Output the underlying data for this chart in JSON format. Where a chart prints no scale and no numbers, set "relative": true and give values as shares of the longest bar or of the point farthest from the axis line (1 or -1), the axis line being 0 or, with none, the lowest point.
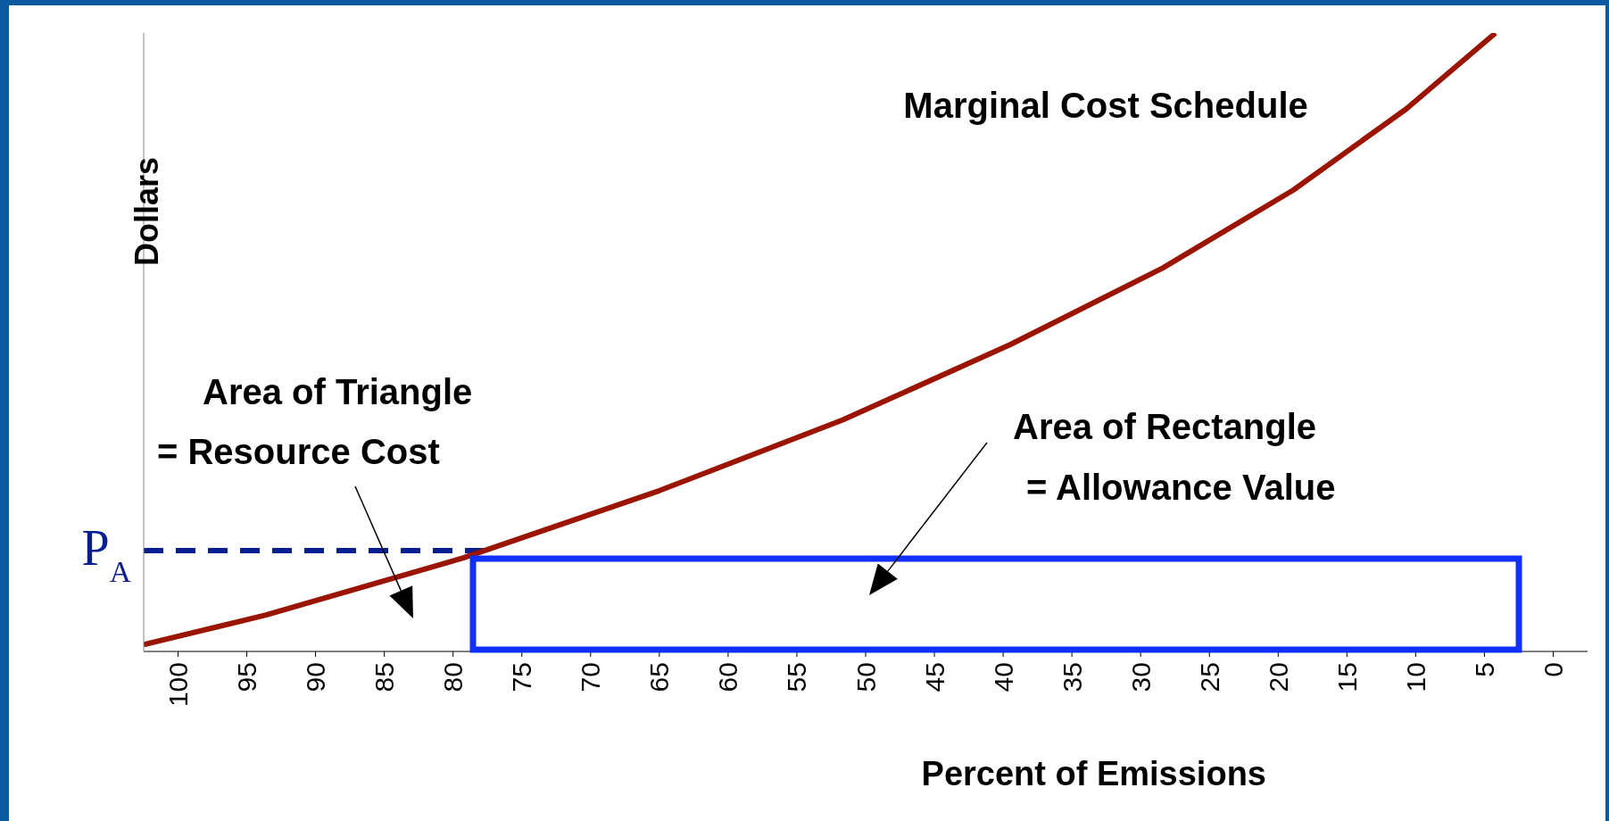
{
  "chart_data": {
    "type": "line",
    "xlabel": "Percent of Emissions",
    "ylabel": "Dollars",
    "relative": true,
    "marker": "none",
    "xlim": [
      102.5,
      -2.5
    ],
    "xticks": [
      100,
      95,
      90,
      85,
      80,
      75,
      70,
      65,
      60,
      55,
      50,
      45,
      40,
      35,
      30,
      25,
      20,
      15,
      10,
      5,
      0
    ],
    "series": [
      {
        "name": "Marginal Cost Schedule",
        "color": "#9b1400",
        "x": [
          102.5,
          93.6,
          79.3,
          65,
          51.7,
          39.5,
          28.4,
          18.9,
          10.7,
          4.2
        ],
        "values": [
          0.011,
          0.059,
          0.151,
          0.26,
          0.374,
          0.496,
          0.62,
          0.746,
          0.877,
          1
        ]
      }
    ],
    "ref_lines": [
      {
        "axis": "y",
        "value": 0.163,
        "label": "P$_{A}$",
        "color": "#0a1f8f",
        "line_style": "dashed"
      }
    ],
    "annotations": [
      "Area of Triangle\n= Resource Cost",
      "Area of Rectangle\n= Allowance Value"
    ]
  }
}
